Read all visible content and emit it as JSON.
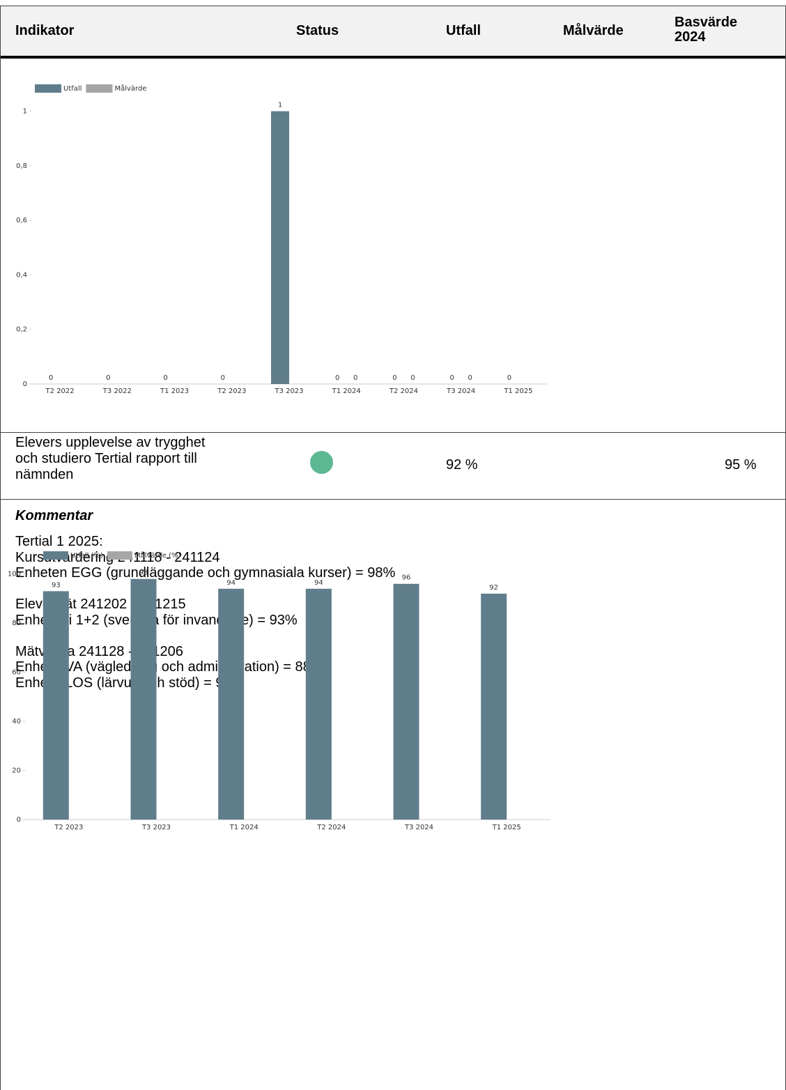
{
  "table": {
    "columns": [
      "Indikator",
      "Status",
      "Utfall",
      "Målvärde",
      "Basvärde 2024"
    ],
    "row": {
      "indicator": "Elevers upplevelse av trygghet och studiero Tertial rapport till nämnden",
      "utfall": "92 %",
      "basvarde": "95 %"
    }
  },
  "comment": {
    "heading": "Kommentar",
    "paragraphs": [
      [
        "Tertial 1 2025:",
        "Kursutvärdering 241118 - 241124",
        "Enheten EGG (grundläggande och gymnasiala kurser) = 98%"
      ],
      [
        "Elevenkät 241202 - 241215",
        "Enhet Sfi 1+2 (svenska för invandrare) = 93%"
      ],
      [
        "Mätvecka 241128 - 241206",
        "Enhet EVA (vägledning och administration) = 88%",
        "Enhet ELOS (lärvux och stöd) = 91%"
      ]
    ]
  },
  "chart_data": [
    {
      "type": "bar",
      "categories": [
        "T2 2022",
        "T3 2022",
        "T1 2023",
        "T2 2023",
        "T3 2023",
        "T1 2024",
        "T2 2024",
        "T3 2024",
        "T1 2025"
      ],
      "series": [
        {
          "name": "Utfall",
          "color": "#607d8b",
          "values": [
            0,
            0,
            0,
            0,
            1,
            0,
            0,
            0,
            0
          ]
        },
        {
          "name": "Målvärde",
          "color": "#a6a6a6",
          "values": [
            null,
            null,
            null,
            null,
            null,
            0,
            0,
            0,
            null
          ]
        }
      ],
      "ylim": [
        0,
        1.05
      ],
      "yticks": [
        0,
        {
          "value": 0.2,
          "label": "0,2"
        },
        {
          "value": 0.4,
          "label": "0,4"
        },
        {
          "value": 0.6,
          "label": "0,6"
        },
        {
          "value": 0.8,
          "label": "0,8"
        },
        1
      ]
    },
    {
      "type": "bar",
      "categories": [
        "T2 2023",
        "T3 2023",
        "T1 2024",
        "T2 2024",
        "T3 2024",
        "T1 2025"
      ],
      "series": [
        {
          "name": "Utfall (%)",
          "color": "#607d8b",
          "values": [
            93,
            98,
            94,
            94,
            96,
            92
          ]
        },
        {
          "name": "Målvärde (%)",
          "color": "#a6a6a6",
          "values": [
            null,
            null,
            null,
            null,
            null,
            null
          ]
        }
      ],
      "ylim": [
        0,
        105
      ],
      "yticks": [
        0,
        20,
        40,
        60,
        80,
        100
      ]
    }
  ]
}
